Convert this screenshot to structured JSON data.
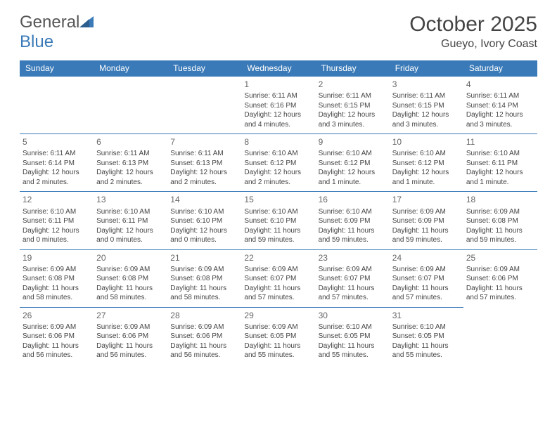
{
  "brand": {
    "word1": "General",
    "word2": "Blue"
  },
  "title": "October 2025",
  "location": "Gueyo, Ivory Coast",
  "colors": {
    "header_bg": "#3a7ab8",
    "header_text": "#ffffff",
    "body_text": "#444444",
    "daynum_text": "#666666",
    "border": "#3a7ab8",
    "page_bg": "#ffffff"
  },
  "typography": {
    "title_fontsize": 30,
    "location_fontsize": 16,
    "dayheader_fontsize": 12,
    "daynum_fontsize": 12,
    "cell_fontsize": 10
  },
  "layout": {
    "columns": 7,
    "rows": 5,
    "leading_blanks": 3
  },
  "day_names": [
    "Sunday",
    "Monday",
    "Tuesday",
    "Wednesday",
    "Thursday",
    "Friday",
    "Saturday"
  ],
  "days": [
    {
      "n": "1",
      "sr": "6:11 AM",
      "ss": "6:16 PM",
      "dl": "12 hours and 4 minutes."
    },
    {
      "n": "2",
      "sr": "6:11 AM",
      "ss": "6:15 PM",
      "dl": "12 hours and 3 minutes."
    },
    {
      "n": "3",
      "sr": "6:11 AM",
      "ss": "6:15 PM",
      "dl": "12 hours and 3 minutes."
    },
    {
      "n": "4",
      "sr": "6:11 AM",
      "ss": "6:14 PM",
      "dl": "12 hours and 3 minutes."
    },
    {
      "n": "5",
      "sr": "6:11 AM",
      "ss": "6:14 PM",
      "dl": "12 hours and 2 minutes."
    },
    {
      "n": "6",
      "sr": "6:11 AM",
      "ss": "6:13 PM",
      "dl": "12 hours and 2 minutes."
    },
    {
      "n": "7",
      "sr": "6:11 AM",
      "ss": "6:13 PM",
      "dl": "12 hours and 2 minutes."
    },
    {
      "n": "8",
      "sr": "6:10 AM",
      "ss": "6:12 PM",
      "dl": "12 hours and 2 minutes."
    },
    {
      "n": "9",
      "sr": "6:10 AM",
      "ss": "6:12 PM",
      "dl": "12 hours and 1 minute."
    },
    {
      "n": "10",
      "sr": "6:10 AM",
      "ss": "6:12 PM",
      "dl": "12 hours and 1 minute."
    },
    {
      "n": "11",
      "sr": "6:10 AM",
      "ss": "6:11 PM",
      "dl": "12 hours and 1 minute."
    },
    {
      "n": "12",
      "sr": "6:10 AM",
      "ss": "6:11 PM",
      "dl": "12 hours and 0 minutes."
    },
    {
      "n": "13",
      "sr": "6:10 AM",
      "ss": "6:11 PM",
      "dl": "12 hours and 0 minutes."
    },
    {
      "n": "14",
      "sr": "6:10 AM",
      "ss": "6:10 PM",
      "dl": "12 hours and 0 minutes."
    },
    {
      "n": "15",
      "sr": "6:10 AM",
      "ss": "6:10 PM",
      "dl": "11 hours and 59 minutes."
    },
    {
      "n": "16",
      "sr": "6:10 AM",
      "ss": "6:09 PM",
      "dl": "11 hours and 59 minutes."
    },
    {
      "n": "17",
      "sr": "6:09 AM",
      "ss": "6:09 PM",
      "dl": "11 hours and 59 minutes."
    },
    {
      "n": "18",
      "sr": "6:09 AM",
      "ss": "6:08 PM",
      "dl": "11 hours and 59 minutes."
    },
    {
      "n": "19",
      "sr": "6:09 AM",
      "ss": "6:08 PM",
      "dl": "11 hours and 58 minutes."
    },
    {
      "n": "20",
      "sr": "6:09 AM",
      "ss": "6:08 PM",
      "dl": "11 hours and 58 minutes."
    },
    {
      "n": "21",
      "sr": "6:09 AM",
      "ss": "6:08 PM",
      "dl": "11 hours and 58 minutes."
    },
    {
      "n": "22",
      "sr": "6:09 AM",
      "ss": "6:07 PM",
      "dl": "11 hours and 57 minutes."
    },
    {
      "n": "23",
      "sr": "6:09 AM",
      "ss": "6:07 PM",
      "dl": "11 hours and 57 minutes."
    },
    {
      "n": "24",
      "sr": "6:09 AM",
      "ss": "6:07 PM",
      "dl": "11 hours and 57 minutes."
    },
    {
      "n": "25",
      "sr": "6:09 AM",
      "ss": "6:06 PM",
      "dl": "11 hours and 57 minutes."
    },
    {
      "n": "26",
      "sr": "6:09 AM",
      "ss": "6:06 PM",
      "dl": "11 hours and 56 minutes."
    },
    {
      "n": "27",
      "sr": "6:09 AM",
      "ss": "6:06 PM",
      "dl": "11 hours and 56 minutes."
    },
    {
      "n": "28",
      "sr": "6:09 AM",
      "ss": "6:06 PM",
      "dl": "11 hours and 56 minutes."
    },
    {
      "n": "29",
      "sr": "6:09 AM",
      "ss": "6:05 PM",
      "dl": "11 hours and 55 minutes."
    },
    {
      "n": "30",
      "sr": "6:10 AM",
      "ss": "6:05 PM",
      "dl": "11 hours and 55 minutes."
    },
    {
      "n": "31",
      "sr": "6:10 AM",
      "ss": "6:05 PM",
      "dl": "11 hours and 55 minutes."
    }
  ],
  "labels": {
    "sunrise": "Sunrise:",
    "sunset": "Sunset:",
    "daylight": "Daylight:"
  }
}
